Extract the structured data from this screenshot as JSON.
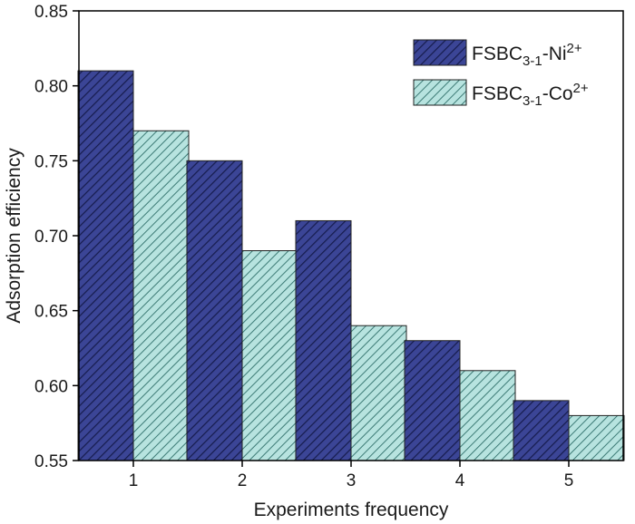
{
  "chart_data": {
    "type": "bar",
    "categories": [
      "1",
      "2",
      "3",
      "4",
      "5"
    ],
    "series": [
      {
        "name": "FSBC3-1-Ni2+",
        "label": {
          "base": "FSBC",
          "sub": "3-1",
          "mid": "-Ni",
          "sup": "2+"
        },
        "values": [
          0.81,
          0.75,
          0.71,
          0.63,
          0.59
        ],
        "color": "#3b4596",
        "stripe": "#161c4d"
      },
      {
        "name": "FSBC3-1-Co2+",
        "label": {
          "base": "FSBC",
          "sub": "3-1",
          "mid": "-Co",
          "sup": "2+"
        },
        "values": [
          0.77,
          0.69,
          0.64,
          0.61,
          0.58
        ],
        "color": "#b7e3df",
        "stripe": "#2f6f6a"
      }
    ],
    "xlabel": "Experiments frequency",
    "ylabel": "Adsorption efficiency",
    "ylim": [
      0.55,
      0.85
    ],
    "yticks": [
      "0.55",
      "0.60",
      "0.65",
      "0.70",
      "0.75",
      "0.80",
      "0.85"
    ],
    "grid": false,
    "legend": "top-right"
  }
}
